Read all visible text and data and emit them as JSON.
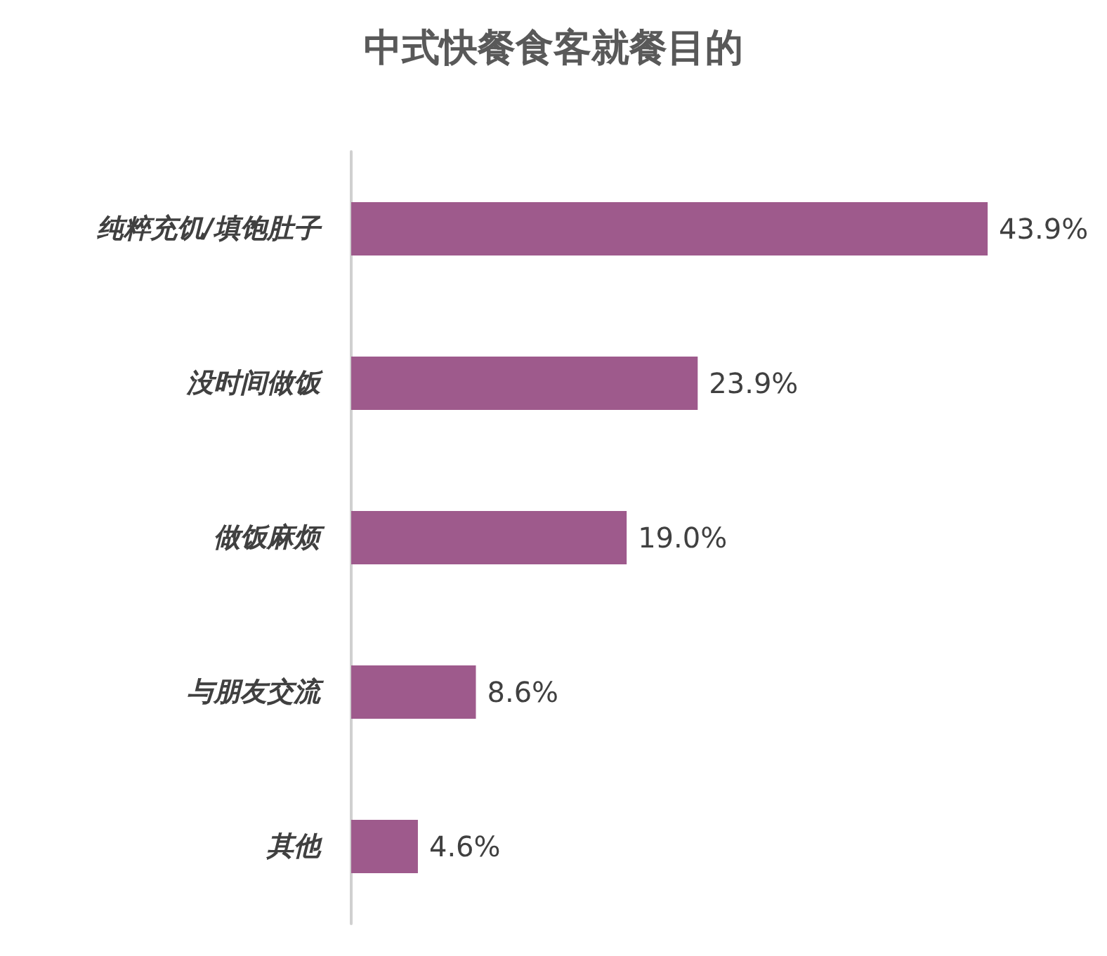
{
  "chart_data": {
    "type": "bar",
    "orientation": "horizontal",
    "title": "中式快餐食客就餐目的",
    "categories": [
      "纯粹充饥/填饱肚子",
      "没时间做饭",
      "做饭麻烦",
      "与朋友交流",
      "其他"
    ],
    "values": [
      43.9,
      23.9,
      19.0,
      8.6,
      4.6
    ],
    "value_labels": [
      "43.9%",
      "23.9%",
      "19.0%",
      "8.6%",
      "4.6%"
    ],
    "color": "#9e5a8c"
  }
}
